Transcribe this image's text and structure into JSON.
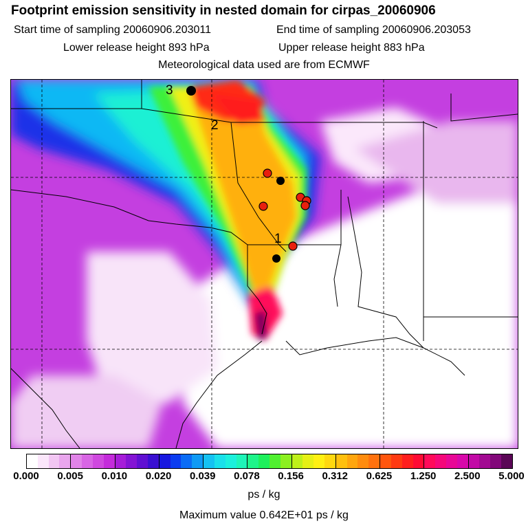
{
  "title": "Footprint emission sensitivity in nested domain for cirpas_20060906",
  "sampling": {
    "start": "Start time of sampling 20060906.203011",
    "end": "End time of sampling 20060906.203053"
  },
  "release": {
    "lower": "Lower release height  893 hPa",
    "upper": "Upper release height  883 hPa"
  },
  "met_note": "Meteorological data used are from ECMWF",
  "colorbar": {
    "ticks": [
      "0.000",
      "0.005",
      "0.010",
      "0.020",
      "0.039",
      "0.078",
      "0.156",
      "0.312",
      "0.625",
      "1.250",
      "2.500",
      "5.000"
    ],
    "segments": [
      [
        "#ffffff",
        "#fbe6fb",
        "#f2c6f3",
        "#e9a6ed"
      ],
      [
        "#e184e8",
        "#d865e4",
        "#cf48df",
        "#c42bdb"
      ],
      [
        "#a61dd8",
        "#8414d4",
        "#6010d2",
        "#3a10d2"
      ],
      [
        "#1818e0",
        "#0b3cf0",
        "#0a6cf5",
        "#0f9af5"
      ],
      [
        "#15c2f2",
        "#1ae0ea",
        "#1cf0dc",
        "#1ef5b8"
      ],
      [
        "#1ef58a",
        "#1ef05c",
        "#50f030",
        "#8cf020"
      ],
      [
        "#bff01a",
        "#e6f015",
        "#fff012",
        "#ffd80f"
      ],
      [
        "#ffc00e",
        "#ffa60e",
        "#ff8c0e",
        "#ff720e"
      ],
      [
        "#ff560e",
        "#ff3a12",
        "#ff1e1e",
        "#ff0a34"
      ],
      [
        "#ff0a5a",
        "#f5087a",
        "#e80896",
        "#d808aa"
      ],
      [
        "#c20aa6",
        "#a20a92",
        "#82087a",
        "#5a0656"
      ]
    ]
  },
  "unit": "ps / kg",
  "max_value": "Maximum value  0.642E+01 ps / kg",
  "map": {
    "markers": [
      {
        "label": "3",
        "type": "black"
      },
      {
        "label": "2",
        "type": "none"
      },
      {
        "label": "1",
        "type": "red"
      },
      {
        "type": "red"
      },
      {
        "type": "black"
      },
      {
        "type": "red"
      },
      {
        "type": "red"
      },
      {
        "type": "red"
      },
      {
        "type": "black"
      }
    ]
  }
}
